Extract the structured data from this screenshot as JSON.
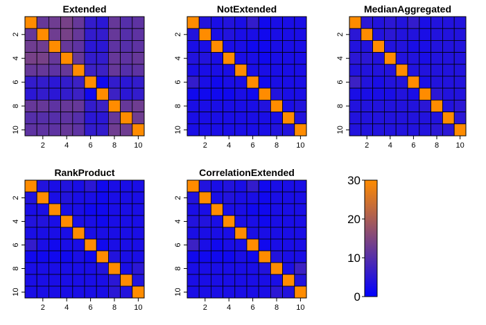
{
  "colors": {
    "low": "#0000FF",
    "high": "#FF8C00",
    "border": "#000000"
  },
  "colorbar": {
    "min": 0,
    "max": 30,
    "ticks": [
      0,
      10,
      20,
      30
    ]
  },
  "chart_data": [
    {
      "type": "heatmap",
      "title": "Extended",
      "x_ticks": [
        2,
        4,
        6,
        8,
        10
      ],
      "y_ticks": [
        2,
        4,
        6,
        8,
        10
      ],
      "values": [
        [
          30,
          12,
          13,
          14,
          12,
          6,
          5,
          12,
          10,
          11
        ],
        [
          12,
          30,
          13,
          14,
          12,
          6,
          6,
          12,
          10,
          11
        ],
        [
          13,
          13,
          30,
          12,
          11,
          5,
          5,
          11,
          10,
          11
        ],
        [
          14,
          14,
          12,
          30,
          12,
          6,
          6,
          12,
          11,
          12
        ],
        [
          12,
          12,
          11,
          12,
          30,
          7,
          7,
          12,
          10,
          11
        ],
        [
          6,
          6,
          5,
          6,
          7,
          30,
          2,
          6,
          5,
          6
        ],
        [
          5,
          6,
          5,
          6,
          7,
          2,
          30,
          7,
          5,
          6
        ],
        [
          12,
          12,
          11,
          12,
          12,
          6,
          7,
          30,
          12,
          13
        ],
        [
          10,
          10,
          10,
          11,
          10,
          5,
          5,
          12,
          30,
          13
        ],
        [
          11,
          11,
          11,
          12,
          11,
          6,
          6,
          13,
          13,
          30
        ]
      ]
    },
    {
      "type": "heatmap",
      "title": "NotExtended",
      "x_ticks": [
        2,
        4,
        6,
        8,
        10
      ],
      "y_ticks": [
        2,
        4,
        6,
        8,
        10
      ],
      "values": [
        [
          30,
          4,
          3,
          4,
          3,
          6,
          2,
          3,
          3,
          3
        ],
        [
          4,
          30,
          3,
          4,
          3,
          3,
          2,
          3,
          3,
          3
        ],
        [
          3,
          3,
          30,
          3,
          3,
          2,
          2,
          3,
          3,
          3
        ],
        [
          4,
          4,
          3,
          30,
          3,
          3,
          2,
          3,
          3,
          3
        ],
        [
          3,
          3,
          3,
          3,
          30,
          3,
          3,
          3,
          3,
          3
        ],
        [
          6,
          3,
          2,
          3,
          3,
          30,
          2,
          3,
          3,
          3
        ],
        [
          2,
          2,
          2,
          2,
          3,
          2,
          30,
          4,
          3,
          3
        ],
        [
          3,
          3,
          3,
          3,
          3,
          3,
          4,
          30,
          3,
          4
        ],
        [
          3,
          3,
          3,
          3,
          3,
          3,
          3,
          3,
          30,
          4
        ],
        [
          3,
          3,
          3,
          3,
          3,
          3,
          3,
          4,
          4,
          30
        ]
      ]
    },
    {
      "type": "heatmap",
      "title": "MedianAggregated",
      "x_ticks": [
        2,
        4,
        6,
        8,
        10
      ],
      "y_ticks": [
        2,
        4,
        6,
        8,
        10
      ],
      "values": [
        [
          30,
          5,
          4,
          5,
          4,
          6,
          3,
          4,
          4,
          4
        ],
        [
          5,
          30,
          4,
          5,
          4,
          4,
          3,
          4,
          4,
          4
        ],
        [
          4,
          4,
          30,
          4,
          4,
          3,
          3,
          4,
          4,
          4
        ],
        [
          5,
          5,
          4,
          30,
          4,
          4,
          3,
          4,
          4,
          4
        ],
        [
          4,
          4,
          4,
          4,
          30,
          4,
          4,
          4,
          4,
          4
        ],
        [
          7,
          4,
          3,
          4,
          4,
          30,
          3,
          4,
          4,
          4
        ],
        [
          3,
          3,
          3,
          3,
          4,
          3,
          30,
          5,
          4,
          4
        ],
        [
          4,
          4,
          4,
          4,
          4,
          4,
          5,
          30,
          4,
          5
        ],
        [
          4,
          4,
          4,
          4,
          4,
          4,
          4,
          4,
          30,
          5
        ],
        [
          4,
          4,
          4,
          4,
          4,
          4,
          4,
          5,
          5,
          30
        ]
      ]
    },
    {
      "type": "heatmap",
      "title": "RankProduct",
      "x_ticks": [
        2,
        4,
        6,
        8,
        10
      ],
      "y_ticks": [
        2,
        4,
        6,
        8,
        10
      ],
      "values": [
        [
          30,
          4,
          3,
          4,
          3,
          5,
          2,
          3,
          3,
          3
        ],
        [
          4,
          30,
          3,
          4,
          3,
          3,
          2,
          3,
          3,
          3
        ],
        [
          3,
          3,
          30,
          3,
          3,
          2,
          2,
          3,
          3,
          3
        ],
        [
          4,
          4,
          3,
          30,
          3,
          3,
          2,
          3,
          3,
          3
        ],
        [
          3,
          3,
          3,
          3,
          30,
          3,
          3,
          3,
          3,
          3
        ],
        [
          6,
          3,
          2,
          3,
          3,
          30,
          2,
          3,
          3,
          3
        ],
        [
          2,
          2,
          2,
          2,
          3,
          2,
          30,
          4,
          3,
          3
        ],
        [
          3,
          3,
          3,
          3,
          3,
          3,
          4,
          30,
          3,
          5
        ],
        [
          3,
          3,
          3,
          3,
          3,
          3,
          3,
          5,
          30,
          4
        ],
        [
          3,
          3,
          3,
          3,
          3,
          3,
          3,
          5,
          4,
          30
        ]
      ]
    },
    {
      "type": "heatmap",
      "title": "CorrelationExtended",
      "x_ticks": [
        2,
        4,
        6,
        8,
        10
      ],
      "y_ticks": [
        2,
        4,
        6,
        8,
        10
      ],
      "values": [
        [
          30,
          4,
          3,
          4,
          3,
          6,
          2,
          3,
          3,
          3
        ],
        [
          4,
          30,
          3,
          4,
          3,
          3,
          2,
          3,
          3,
          3
        ],
        [
          3,
          3,
          30,
          3,
          3,
          2,
          2,
          3,
          3,
          3
        ],
        [
          4,
          4,
          3,
          30,
          3,
          3,
          2,
          3,
          3,
          3
        ],
        [
          3,
          3,
          3,
          3,
          30,
          3,
          3,
          3,
          3,
          3
        ],
        [
          7,
          3,
          2,
          3,
          3,
          30,
          2,
          3,
          3,
          3
        ],
        [
          2,
          2,
          2,
          2,
          3,
          2,
          30,
          4,
          3,
          3
        ],
        [
          3,
          3,
          3,
          3,
          3,
          3,
          4,
          30,
          3,
          7
        ],
        [
          3,
          3,
          3,
          3,
          3,
          3,
          3,
          3,
          30,
          4
        ],
        [
          3,
          3,
          3,
          3,
          3,
          3,
          3,
          5,
          4,
          30
        ]
      ]
    }
  ]
}
